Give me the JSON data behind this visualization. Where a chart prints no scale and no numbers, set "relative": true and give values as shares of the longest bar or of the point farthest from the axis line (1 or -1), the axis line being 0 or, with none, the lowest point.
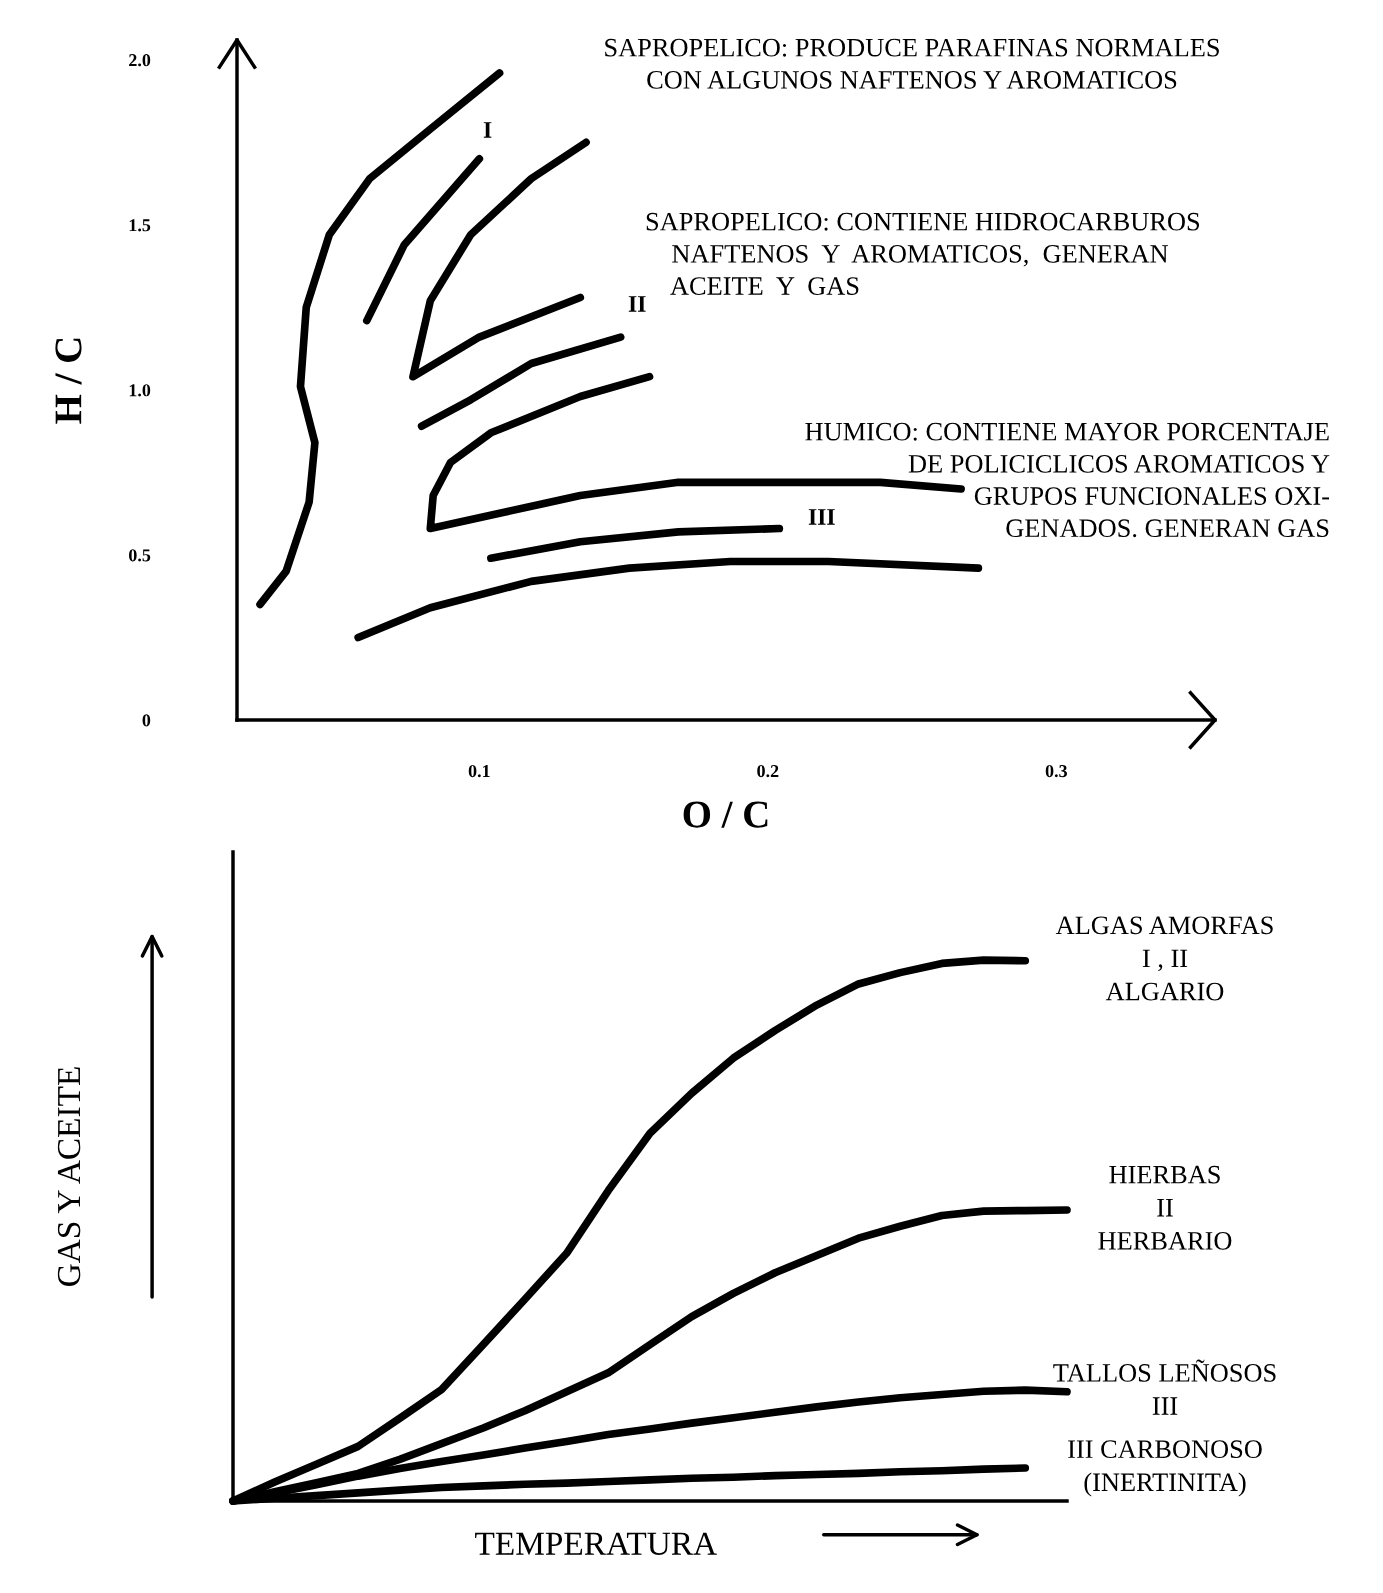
{
  "chart_data": [
    {
      "type": "line",
      "xlabel": "O / C",
      "ylabel": "H / C",
      "xlim": [
        0.016,
        0.355
      ],
      "ylim": [
        0,
        2.06
      ],
      "xticks": [
        0.1,
        0.2,
        0.3
      ],
      "yticks": [
        0,
        0.5,
        {
          "value": 1.0,
          "label": "1.0"
        },
        1.5,
        {
          "value": 2.0,
          "label": "2.0"
        }
      ],
      "grid": false,
      "series": [
        {
          "color": "#000000",
          "x": [
            0.024,
            0.033,
            0.041,
            0.043,
            0.038,
            0.04,
            0.048,
            0.062,
            0.083,
            0.107
          ],
          "values": [
            0.35,
            0.45,
            0.66,
            0.84,
            1.01,
            1.25,
            1.47,
            1.64,
            1.79,
            1.96
          ]
        },
        {
          "color": "#000000",
          "x": [
            0.061,
            0.074,
            0.1
          ],
          "values": [
            1.21,
            1.44,
            1.7
          ]
        },
        {
          "color": "#000000",
          "x": [
            0.137,
            0.118,
            0.097,
            0.083,
            0.077,
            0.1,
            0.135
          ],
          "values": [
            1.75,
            1.64,
            1.47,
            1.27,
            1.04,
            1.16,
            1.28
          ]
        },
        {
          "color": "#000000",
          "x": [
            0.08,
            0.097,
            0.118,
            0.149
          ],
          "values": [
            0.89,
            0.97,
            1.08,
            1.16
          ]
        },
        {
          "color": "#000000",
          "x": [
            0.159,
            0.135,
            0.104,
            0.09,
            0.084,
            0.083,
            0.109,
            0.135,
            0.169,
            0.204,
            0.239,
            0.267
          ],
          "values": [
            1.04,
            0.98,
            0.87,
            0.78,
            0.68,
            0.58,
            0.63,
            0.68,
            0.72,
            0.72,
            0.72,
            0.7
          ]
        },
        {
          "color": "#000000",
          "x": [
            0.104,
            0.135,
            0.169,
            0.204
          ],
          "values": [
            0.49,
            0.54,
            0.57,
            0.58
          ]
        },
        {
          "color": "#000000",
          "x": [
            0.058,
            0.083,
            0.118,
            0.152,
            0.187,
            0.221,
            0.273
          ],
          "values": [
            0.25,
            0.34,
            0.42,
            0.46,
            0.48,
            0.48,
            0.46
          ]
        }
      ],
      "annotations": [
        "SAPROPELICO: PRODUCE PARAFINAS NORMALES\nCON ALGUNOS NAFTENOS Y AROMATICOS",
        "SAPROPELICO: CONTIENE HIDROCARBUROS\n    NAFTENOS  Y  AROMATICOS,  GENERAN\n    ACEITE  Y  GAS",
        "HUMICO: CONTIENE MAYOR PORCENTAJE\nDE POLICICLICOS AROMATICOS Y\nGRUPOS FUNCIONALES OXI-\nGENADOS. GENERAN GAS",
        "I",
        "II",
        "III"
      ]
    },
    {
      "type": "line",
      "relative": true,
      "categories": [
        null,
        null,
        null,
        null,
        null,
        null,
        null,
        null,
        null,
        null,
        null,
        null,
        null,
        null,
        null,
        null,
        null,
        null,
        null,
        null,
        null
      ],
      "xlabel": "TEMPERATURA",
      "ylabel": "GAS Y ACEITE",
      "grid": false,
      "series": [
        {
          "name": "ALGAS AMORFAS\nI , II\nALGARIO",
          "color": "#000000",
          "values": [
            0,
            0.035,
            0.068,
            0.101,
            0.153,
            0.206,
            0.289,
            0.373,
            0.458,
            0.574,
            0.68,
            0.754,
            0.819,
            0.87,
            0.917,
            0.956,
            0.977,
            0.994,
            1,
            0.999,
            null
          ]
        },
        {
          "name": "HIERBAS\nII\nHERBARIO",
          "color": "#000000",
          "values": [
            0,
            0.017,
            0.034,
            0.051,
            0.077,
            0.106,
            0.135,
            0.167,
            0.202,
            0.237,
            0.289,
            0.341,
            0.384,
            0.422,
            0.454,
            0.486,
            0.508,
            0.528,
            0.536,
            0.537,
            0.538
          ]
        },
        {
          "name": "TALLOS LEÑOSOS\nIII",
          "color": "#000000",
          "values": [
            0,
            0.015,
            0.03,
            0.046,
            0.06,
            0.073,
            0.085,
            0.098,
            0.11,
            0.123,
            0.133,
            0.144,
            0.154,
            0.164,
            0.174,
            0.183,
            0.191,
            0.197,
            0.203,
            0.205,
            0.202
          ]
        },
        {
          "name": "III CARBONOSO\n(INERTINITA)",
          "color": "#000000",
          "values": [
            0,
            0.005,
            0.01,
            0.015,
            0.02,
            0.025,
            0.028,
            0.031,
            0.033,
            0.036,
            0.039,
            0.042,
            0.044,
            0.047,
            0.049,
            0.051,
            0.054,
            0.056,
            0.059,
            0.061,
            null
          ]
        }
      ]
    }
  ]
}
